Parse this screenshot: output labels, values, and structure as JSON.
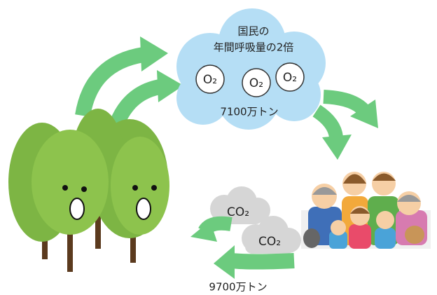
{
  "cloud": {
    "title_lines": [
      "国民の",
      "年間呼吸量の2倍"
    ],
    "molecules": [
      "O₂",
      "O₂",
      "O₂"
    ],
    "amount": "7100万トン"
  },
  "exhale": {
    "molecules": [
      "CO₂",
      "CO₂"
    ],
    "amount": "9700万トン"
  }
}
